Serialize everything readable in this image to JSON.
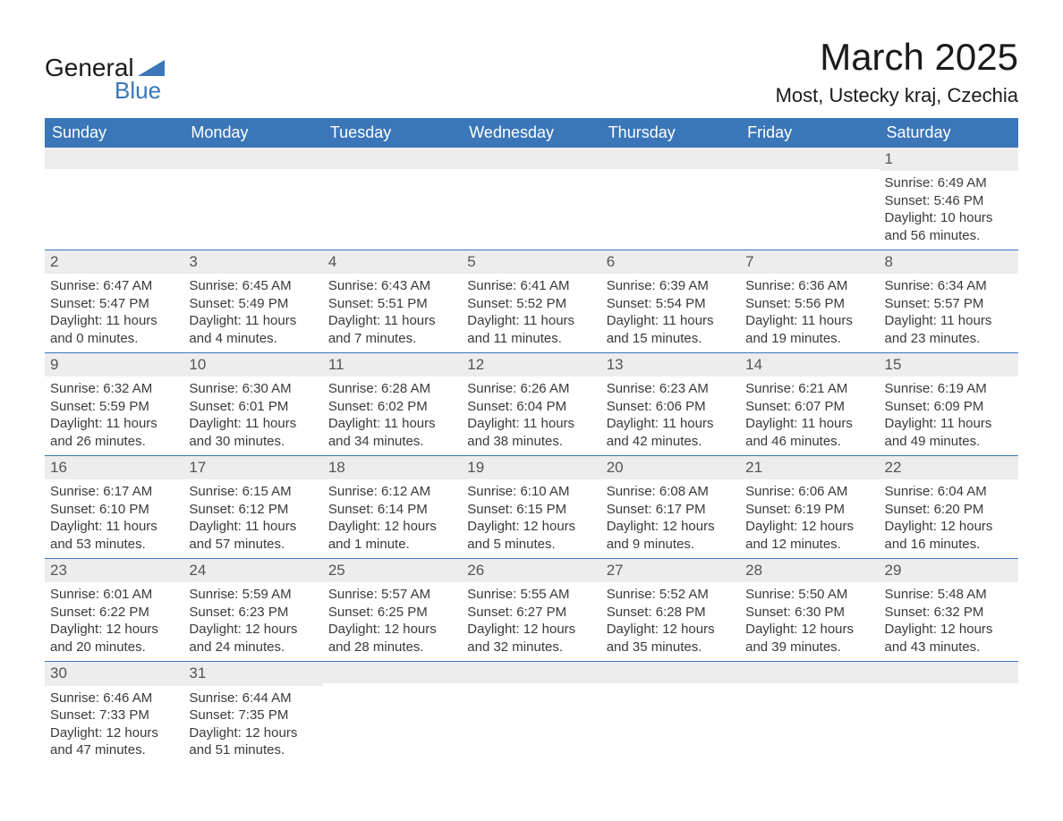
{
  "logo": {
    "text1": "General",
    "text2": "Blue",
    "icon_color": "#3a76b8"
  },
  "title": "March 2025",
  "location": "Most, Ustecky kraj, Czechia",
  "colors": {
    "header_bg": "#3a76b8",
    "header_fg": "#ffffff",
    "daynum_bg": "#ededed",
    "row_border": "#3a76b8",
    "text": "#3a3a3a"
  },
  "typography": {
    "title_fontsize": 42,
    "location_fontsize": 22,
    "th_fontsize": 18,
    "cell_fontsize": 15
  },
  "day_headers": [
    "Sunday",
    "Monday",
    "Tuesday",
    "Wednesday",
    "Thursday",
    "Friday",
    "Saturday"
  ],
  "weeks": [
    [
      {
        "n": "",
        "sr": "",
        "ss": "",
        "dl": ""
      },
      {
        "n": "",
        "sr": "",
        "ss": "",
        "dl": ""
      },
      {
        "n": "",
        "sr": "",
        "ss": "",
        "dl": ""
      },
      {
        "n": "",
        "sr": "",
        "ss": "",
        "dl": ""
      },
      {
        "n": "",
        "sr": "",
        "ss": "",
        "dl": ""
      },
      {
        "n": "",
        "sr": "",
        "ss": "",
        "dl": ""
      },
      {
        "n": "1",
        "sr": "Sunrise: 6:49 AM",
        "ss": "Sunset: 5:46 PM",
        "dl": "Daylight: 10 hours and 56 minutes."
      }
    ],
    [
      {
        "n": "2",
        "sr": "Sunrise: 6:47 AM",
        "ss": "Sunset: 5:47 PM",
        "dl": "Daylight: 11 hours and 0 minutes."
      },
      {
        "n": "3",
        "sr": "Sunrise: 6:45 AM",
        "ss": "Sunset: 5:49 PM",
        "dl": "Daylight: 11 hours and 4 minutes."
      },
      {
        "n": "4",
        "sr": "Sunrise: 6:43 AM",
        "ss": "Sunset: 5:51 PM",
        "dl": "Daylight: 11 hours and 7 minutes."
      },
      {
        "n": "5",
        "sr": "Sunrise: 6:41 AM",
        "ss": "Sunset: 5:52 PM",
        "dl": "Daylight: 11 hours and 11 minutes."
      },
      {
        "n": "6",
        "sr": "Sunrise: 6:39 AM",
        "ss": "Sunset: 5:54 PM",
        "dl": "Daylight: 11 hours and 15 minutes."
      },
      {
        "n": "7",
        "sr": "Sunrise: 6:36 AM",
        "ss": "Sunset: 5:56 PM",
        "dl": "Daylight: 11 hours and 19 minutes."
      },
      {
        "n": "8",
        "sr": "Sunrise: 6:34 AM",
        "ss": "Sunset: 5:57 PM",
        "dl": "Daylight: 11 hours and 23 minutes."
      }
    ],
    [
      {
        "n": "9",
        "sr": "Sunrise: 6:32 AM",
        "ss": "Sunset: 5:59 PM",
        "dl": "Daylight: 11 hours and 26 minutes."
      },
      {
        "n": "10",
        "sr": "Sunrise: 6:30 AM",
        "ss": "Sunset: 6:01 PM",
        "dl": "Daylight: 11 hours and 30 minutes."
      },
      {
        "n": "11",
        "sr": "Sunrise: 6:28 AM",
        "ss": "Sunset: 6:02 PM",
        "dl": "Daylight: 11 hours and 34 minutes."
      },
      {
        "n": "12",
        "sr": "Sunrise: 6:26 AM",
        "ss": "Sunset: 6:04 PM",
        "dl": "Daylight: 11 hours and 38 minutes."
      },
      {
        "n": "13",
        "sr": "Sunrise: 6:23 AM",
        "ss": "Sunset: 6:06 PM",
        "dl": "Daylight: 11 hours and 42 minutes."
      },
      {
        "n": "14",
        "sr": "Sunrise: 6:21 AM",
        "ss": "Sunset: 6:07 PM",
        "dl": "Daylight: 11 hours and 46 minutes."
      },
      {
        "n": "15",
        "sr": "Sunrise: 6:19 AM",
        "ss": "Sunset: 6:09 PM",
        "dl": "Daylight: 11 hours and 49 minutes."
      }
    ],
    [
      {
        "n": "16",
        "sr": "Sunrise: 6:17 AM",
        "ss": "Sunset: 6:10 PM",
        "dl": "Daylight: 11 hours and 53 minutes."
      },
      {
        "n": "17",
        "sr": "Sunrise: 6:15 AM",
        "ss": "Sunset: 6:12 PM",
        "dl": "Daylight: 11 hours and 57 minutes."
      },
      {
        "n": "18",
        "sr": "Sunrise: 6:12 AM",
        "ss": "Sunset: 6:14 PM",
        "dl": "Daylight: 12 hours and 1 minute."
      },
      {
        "n": "19",
        "sr": "Sunrise: 6:10 AM",
        "ss": "Sunset: 6:15 PM",
        "dl": "Daylight: 12 hours and 5 minutes."
      },
      {
        "n": "20",
        "sr": "Sunrise: 6:08 AM",
        "ss": "Sunset: 6:17 PM",
        "dl": "Daylight: 12 hours and 9 minutes."
      },
      {
        "n": "21",
        "sr": "Sunrise: 6:06 AM",
        "ss": "Sunset: 6:19 PM",
        "dl": "Daylight: 12 hours and 12 minutes."
      },
      {
        "n": "22",
        "sr": "Sunrise: 6:04 AM",
        "ss": "Sunset: 6:20 PM",
        "dl": "Daylight: 12 hours and 16 minutes."
      }
    ],
    [
      {
        "n": "23",
        "sr": "Sunrise: 6:01 AM",
        "ss": "Sunset: 6:22 PM",
        "dl": "Daylight: 12 hours and 20 minutes."
      },
      {
        "n": "24",
        "sr": "Sunrise: 5:59 AM",
        "ss": "Sunset: 6:23 PM",
        "dl": "Daylight: 12 hours and 24 minutes."
      },
      {
        "n": "25",
        "sr": "Sunrise: 5:57 AM",
        "ss": "Sunset: 6:25 PM",
        "dl": "Daylight: 12 hours and 28 minutes."
      },
      {
        "n": "26",
        "sr": "Sunrise: 5:55 AM",
        "ss": "Sunset: 6:27 PM",
        "dl": "Daylight: 12 hours and 32 minutes."
      },
      {
        "n": "27",
        "sr": "Sunrise: 5:52 AM",
        "ss": "Sunset: 6:28 PM",
        "dl": "Daylight: 12 hours and 35 minutes."
      },
      {
        "n": "28",
        "sr": "Sunrise: 5:50 AM",
        "ss": "Sunset: 6:30 PM",
        "dl": "Daylight: 12 hours and 39 minutes."
      },
      {
        "n": "29",
        "sr": "Sunrise: 5:48 AM",
        "ss": "Sunset: 6:32 PM",
        "dl": "Daylight: 12 hours and 43 minutes."
      }
    ],
    [
      {
        "n": "30",
        "sr": "Sunrise: 6:46 AM",
        "ss": "Sunset: 7:33 PM",
        "dl": "Daylight: 12 hours and 47 minutes."
      },
      {
        "n": "31",
        "sr": "Sunrise: 6:44 AM",
        "ss": "Sunset: 7:35 PM",
        "dl": "Daylight: 12 hours and 51 minutes."
      },
      {
        "n": "",
        "sr": "",
        "ss": "",
        "dl": ""
      },
      {
        "n": "",
        "sr": "",
        "ss": "",
        "dl": ""
      },
      {
        "n": "",
        "sr": "",
        "ss": "",
        "dl": ""
      },
      {
        "n": "",
        "sr": "",
        "ss": "",
        "dl": ""
      },
      {
        "n": "",
        "sr": "",
        "ss": "",
        "dl": ""
      }
    ]
  ]
}
